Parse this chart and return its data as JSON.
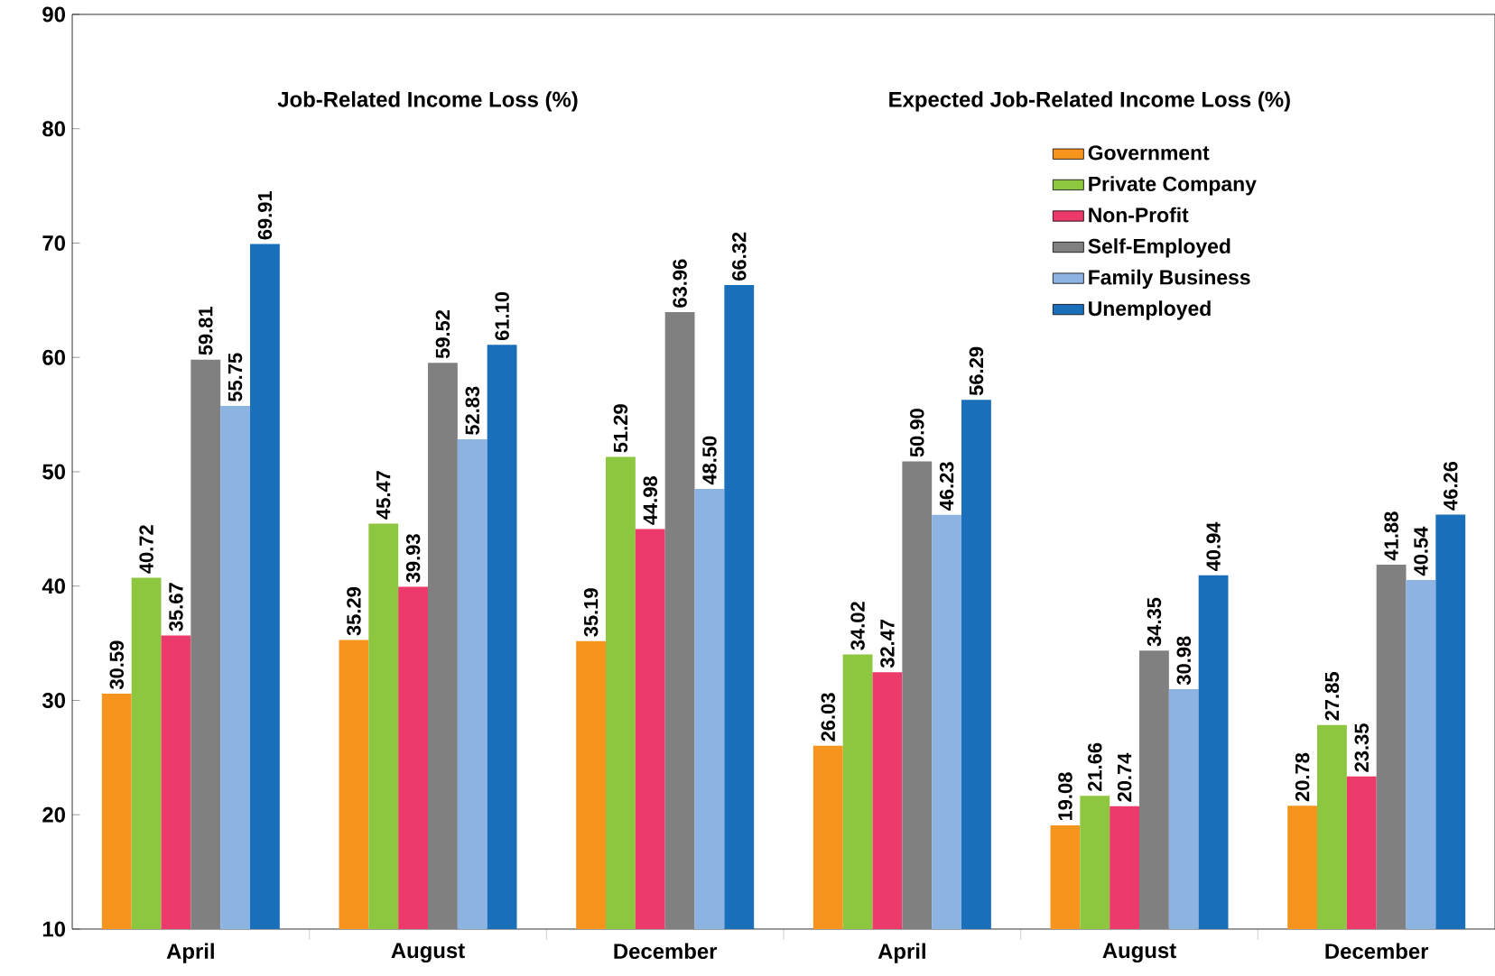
{
  "chart_data": {
    "type": "bar",
    "categories": [
      "April",
      "August",
      "December",
      "April",
      "August",
      "December"
    ],
    "annotations": [
      "Job-Related Income Loss (%)",
      "Expected Job-Related Income Loss (%)"
    ],
    "ylim": [
      10,
      90
    ],
    "yticks": [
      10,
      20,
      30,
      40,
      50,
      60,
      70,
      80,
      90
    ],
    "grid": false,
    "legend": "top right",
    "series": [
      {
        "name": "Government",
        "color": "#f7941d",
        "values": [
          30.59,
          35.29,
          35.19,
          26.03,
          19.08,
          20.78
        ],
        "value_labels": [
          "30.59",
          "35.29",
          "35.19",
          "26.03",
          "19.08",
          "20.78"
        ]
      },
      {
        "name": "Private Company",
        "color": "#8dc63f",
        "values": [
          40.72,
          45.47,
          51.29,
          34.02,
          21.66,
          27.85
        ],
        "value_labels": [
          "40.72",
          "45.47",
          "51.29",
          "34.02",
          "21.66",
          "27.85"
        ]
      },
      {
        "name": "Non-Profit",
        "color": "#ec3b6b",
        "values": [
          35.67,
          39.93,
          44.98,
          32.47,
          20.74,
          23.35
        ],
        "value_labels": [
          "35.67",
          "39.93",
          "44.98",
          "32.47",
          "20.74",
          "23.35"
        ]
      },
      {
        "name": "Self-Employed",
        "color": "#808080",
        "values": [
          59.81,
          59.52,
          63.96,
          50.9,
          34.35,
          41.88
        ],
        "value_labels": [
          "59.81",
          "59.52",
          "63.96",
          "50.90",
          "34.35",
          "41.88"
        ]
      },
      {
        "name": "Family Business",
        "color": "#8db3e2",
        "values": [
          55.75,
          52.83,
          48.5,
          46.23,
          30.98,
          40.54
        ],
        "value_labels": [
          "55.75",
          "52.83",
          "48.50",
          "46.23",
          "30.98",
          "40.54"
        ]
      },
      {
        "name": "Unemployed",
        "color": "#1a6fba",
        "values": [
          69.91,
          61.1,
          66.32,
          56.29,
          40.94,
          46.26
        ],
        "value_labels": [
          "69.91",
          "61.10",
          "66.32",
          "56.29",
          "40.94",
          "46.26"
        ]
      }
    ]
  }
}
